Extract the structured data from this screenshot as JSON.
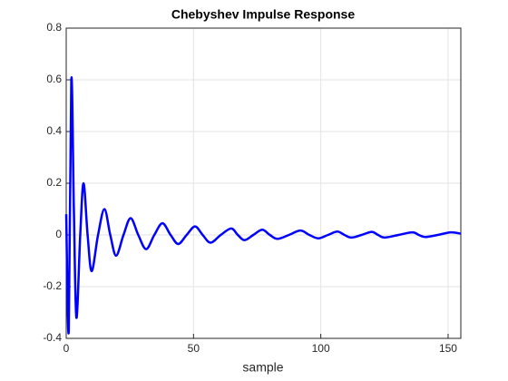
{
  "chart_data": {
    "type": "line",
    "title": "Chebyshev Impulse Response",
    "xlabel": "sample",
    "x": [
      0,
      1,
      2,
      3,
      4,
      5.5,
      6.8,
      8.4,
      10,
      12.5,
      15,
      17.3,
      19.6,
      22.5,
      25.3,
      28.3,
      31.4,
      34.6,
      37.8,
      41,
      44,
      47.3,
      50.6,
      53.6,
      56.7,
      60.7,
      64.8,
      67.4,
      70,
      73.5,
      77,
      80,
      83,
      87.5,
      92,
      95.5,
      99,
      102.8,
      106.5,
      109.3,
      112,
      116,
      120,
      122.5,
      125,
      130.5,
      136,
      138.5,
      141,
      146,
      151,
      155
    ],
    "series": [
      {
        "color": "#0000ff",
        "values": [
          0.08,
          -0.37,
          0.6,
          0.1,
          -0.32,
          0,
          0.2,
          0,
          -0.14,
          0,
          0.1,
          0,
          -0.08,
          0,
          0.065,
          0,
          -0.055,
          0,
          0.045,
          0,
          -0.035,
          0,
          0.033,
          0,
          -0.03,
          0,
          0.025,
          0,
          -0.02,
          0,
          0.02,
          0,
          -0.015,
          0,
          0.017,
          0,
          -0.013,
          0,
          0.013,
          0,
          -0.01,
          0,
          0.012,
          0,
          -0.01,
          0,
          0.01,
          0,
          -0.008,
          0,
          0.01,
          0.005
        ]
      }
    ],
    "xlim": [
      0,
      155
    ],
    "xticks": [
      0,
      50,
      100,
      150
    ],
    "ylim": [
      -0.4,
      0.8
    ],
    "yticks": [
      -0.4,
      -0.2,
      0,
      0.2,
      0.4,
      0.6,
      0.8
    ],
    "grid": true
  }
}
